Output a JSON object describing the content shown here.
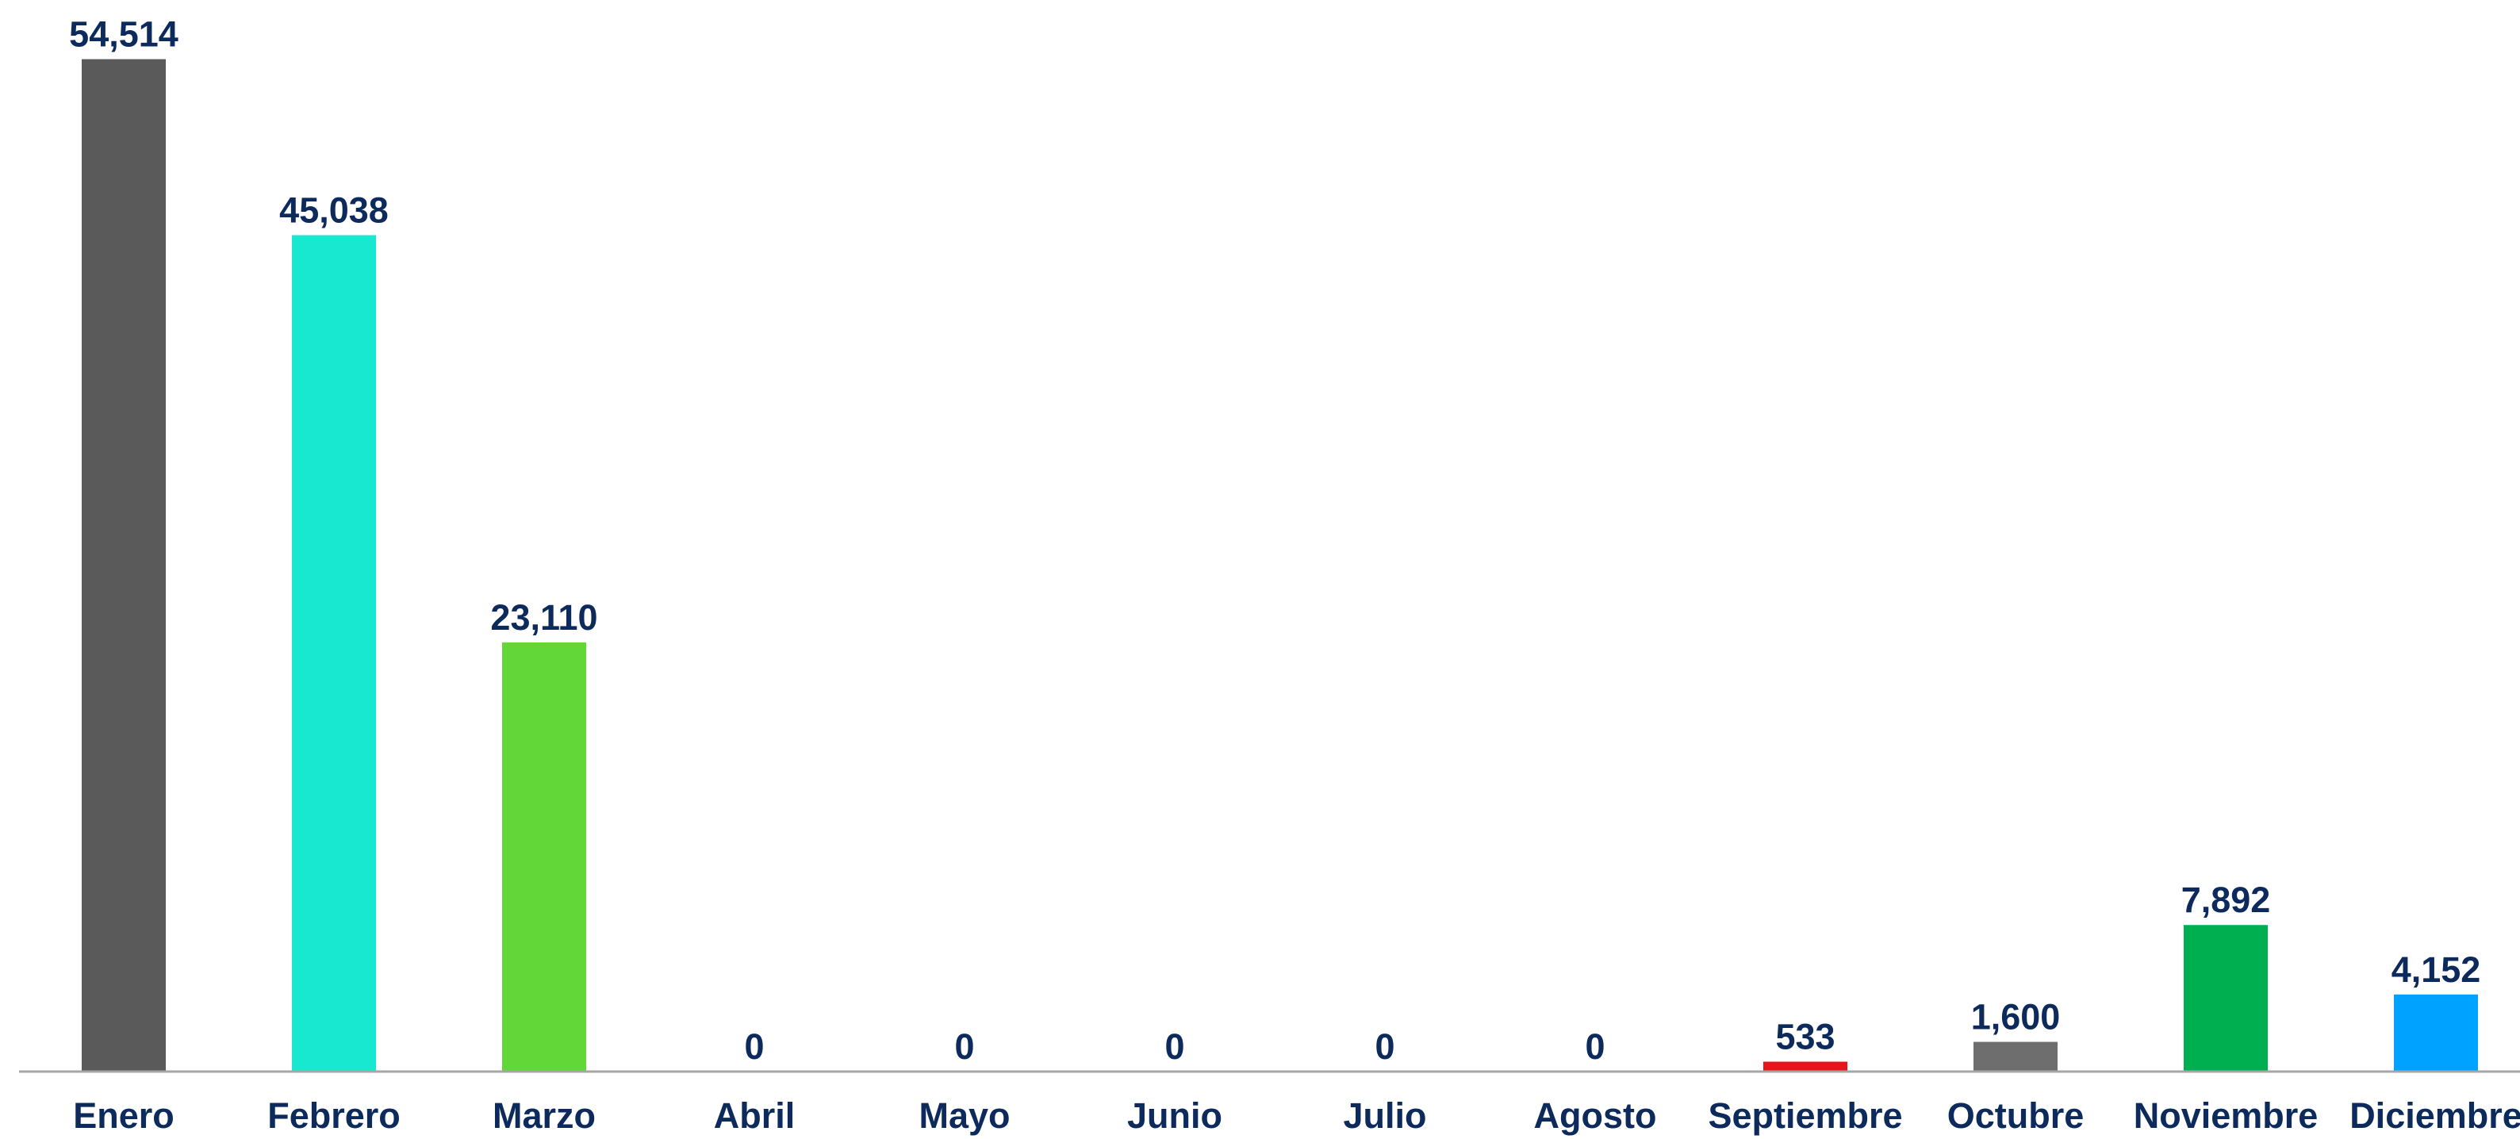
{
  "chart_data": {
    "type": "bar",
    "categories": [
      "Enero",
      "Febrero",
      "Marzo",
      "Abril",
      "Mayo",
      "Junio",
      "Julio",
      "Agosto",
      "Septiembre",
      "Octubre",
      "Noviembre",
      "Diciembre"
    ],
    "values": [
      54514,
      45038,
      23110,
      0,
      0,
      0,
      0,
      0,
      533,
      1600,
      7892,
      4152
    ],
    "value_labels": [
      "54,514",
      "45,038",
      "23,110",
      "0",
      "0",
      "0",
      "0",
      "0",
      "533",
      "1,600",
      "7,892",
      "4,152"
    ],
    "colors": [
      "#5a5a5a",
      "#19e8d0",
      "#62d838",
      "#5a5a5a",
      "#5a5a5a",
      "#5a5a5a",
      "#5a5a5a",
      "#5a5a5a",
      "#e8141c",
      "#6e6e6e",
      "#00b050",
      "#00a2ff"
    ],
    "ylim": [
      0,
      57700
    ],
    "grid": false
  }
}
